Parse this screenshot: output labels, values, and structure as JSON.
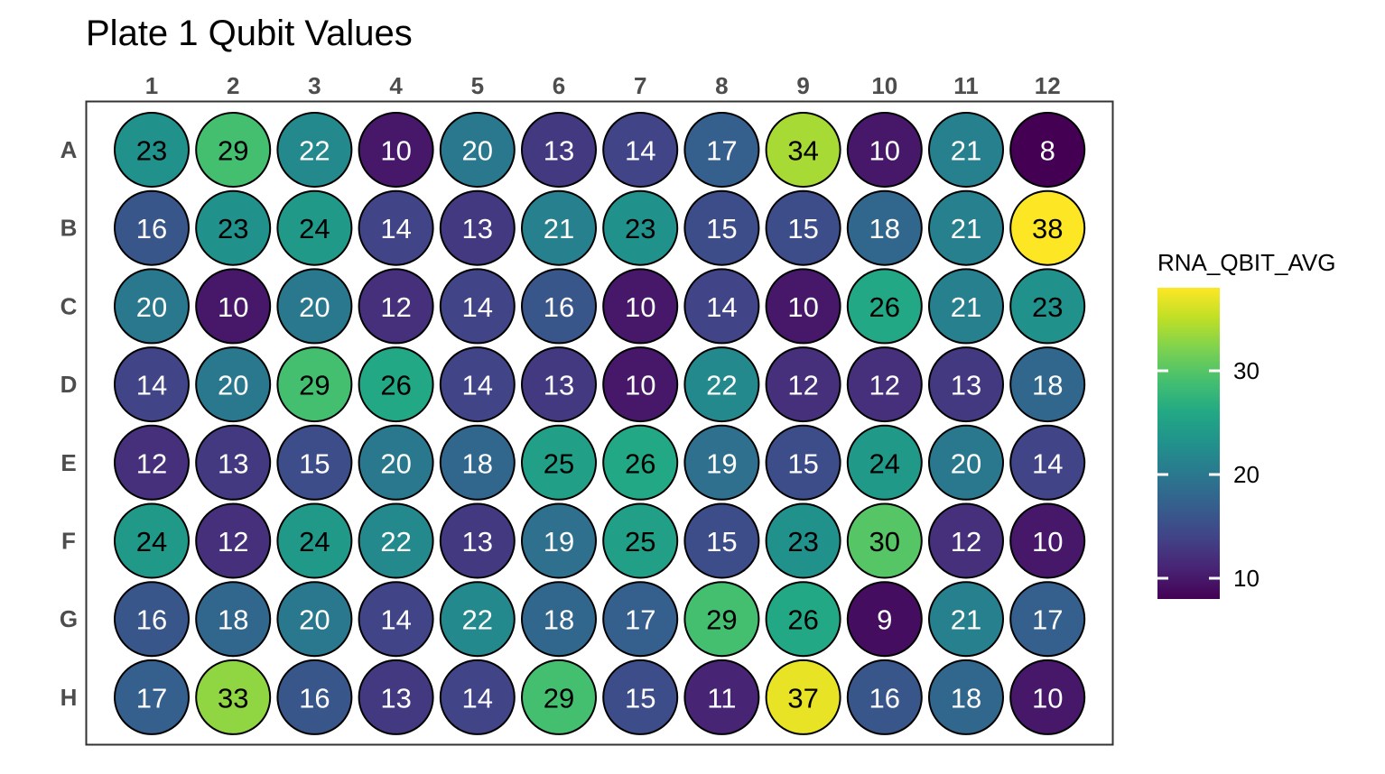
{
  "chart_data": {
    "type": "heatmap",
    "title": "Plate 1 Qubit Values",
    "xlabel": "",
    "ylabel": "",
    "columns": [
      "1",
      "2",
      "3",
      "4",
      "5",
      "6",
      "7",
      "8",
      "9",
      "10",
      "11",
      "12"
    ],
    "rows": [
      "A",
      "B",
      "C",
      "D",
      "E",
      "F",
      "G",
      "H"
    ],
    "values": [
      [
        23,
        29,
        22,
        10,
        20,
        13,
        14,
        17,
        34,
        10,
        21,
        8
      ],
      [
        16,
        23,
        24,
        14,
        13,
        21,
        23,
        15,
        15,
        18,
        21,
        38
      ],
      [
        20,
        10,
        20,
        12,
        14,
        16,
        10,
        14,
        10,
        26,
        21,
        23
      ],
      [
        14,
        20,
        29,
        26,
        14,
        13,
        10,
        22,
        12,
        12,
        13,
        18
      ],
      [
        12,
        13,
        15,
        20,
        18,
        25,
        26,
        19,
        15,
        24,
        20,
        14
      ],
      [
        24,
        12,
        24,
        22,
        13,
        19,
        25,
        15,
        23,
        30,
        12,
        10
      ],
      [
        16,
        18,
        20,
        14,
        22,
        18,
        17,
        29,
        26,
        9,
        21,
        17
      ],
      [
        17,
        33,
        16,
        13,
        14,
        29,
        15,
        11,
        37,
        16,
        18,
        10
      ]
    ],
    "legend": {
      "title": "RNA_QBIT_AVG",
      "position": "right",
      "range": [
        8,
        38
      ],
      "ticks": [
        10,
        20,
        30
      ],
      "palette": "viridis"
    },
    "grid": false
  }
}
